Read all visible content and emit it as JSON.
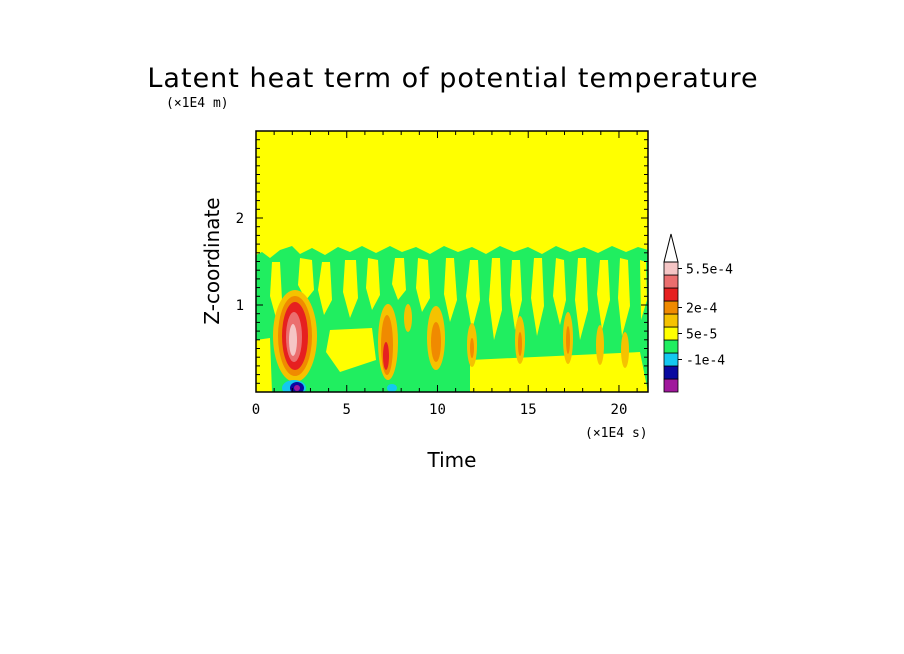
{
  "chart_data": {
    "type": "heatmap",
    "title": "Latent heat term of potential temperature",
    "xlabel": "Time",
    "ylabel": "Z-coordinate",
    "x_unit": "(×1E4 s)",
    "y_unit": "(×1E4 m)",
    "xlim": [
      0,
      21.6
    ],
    "ylim": [
      0,
      3.0
    ],
    "x_ticks": [
      0,
      5,
      10,
      15,
      20
    ],
    "y_ticks": [
      1,
      2
    ],
    "x_tick_labels": [
      "0",
      "5",
      "10",
      "15",
      "20"
    ],
    "y_tick_labels": [
      "1",
      "2"
    ],
    "grid": false,
    "colorbar": {
      "placement": "right",
      "colors": [
        "#a0189c",
        "#0a0aa0",
        "#14c8f0",
        "#20ee60",
        "#ffff00",
        "#f5c200",
        "#f08a00",
        "#e62020",
        "#eb6e6e",
        "#f5c5c5",
        "#ffffff"
      ],
      "labels": [
        "-1e-4",
        "5e-5",
        "2e-4",
        "5.5e-4"
      ],
      "label_levels": [
        2.5,
        4.5,
        6.5,
        9.5
      ]
    },
    "background_value_color": "#ffff00",
    "regions": [
      {
        "name": "active layer",
        "x": [
          0,
          21.6
        ],
        "z_top": 1.6,
        "color": "#20ee60"
      },
      {
        "name": "convective cell 1",
        "x_center": 2.1,
        "z_range": [
          0.05,
          1.0
        ],
        "peak_level": "5.5e-4"
      },
      {
        "name": "convective cell 2",
        "x_center": 7.3,
        "z_range": [
          0.1,
          0.9
        ],
        "peak_level": "2e-4"
      },
      {
        "name": "convective cell 3",
        "x_center": 9.9,
        "z_range": [
          0.2,
          0.9
        ],
        "peak_level": "5e-5"
      },
      {
        "name": "cooling spot",
        "x_center": 2.3,
        "z_range": [
          0.0,
          0.08
        ],
        "peak_level": "-1e-4"
      }
    ]
  }
}
